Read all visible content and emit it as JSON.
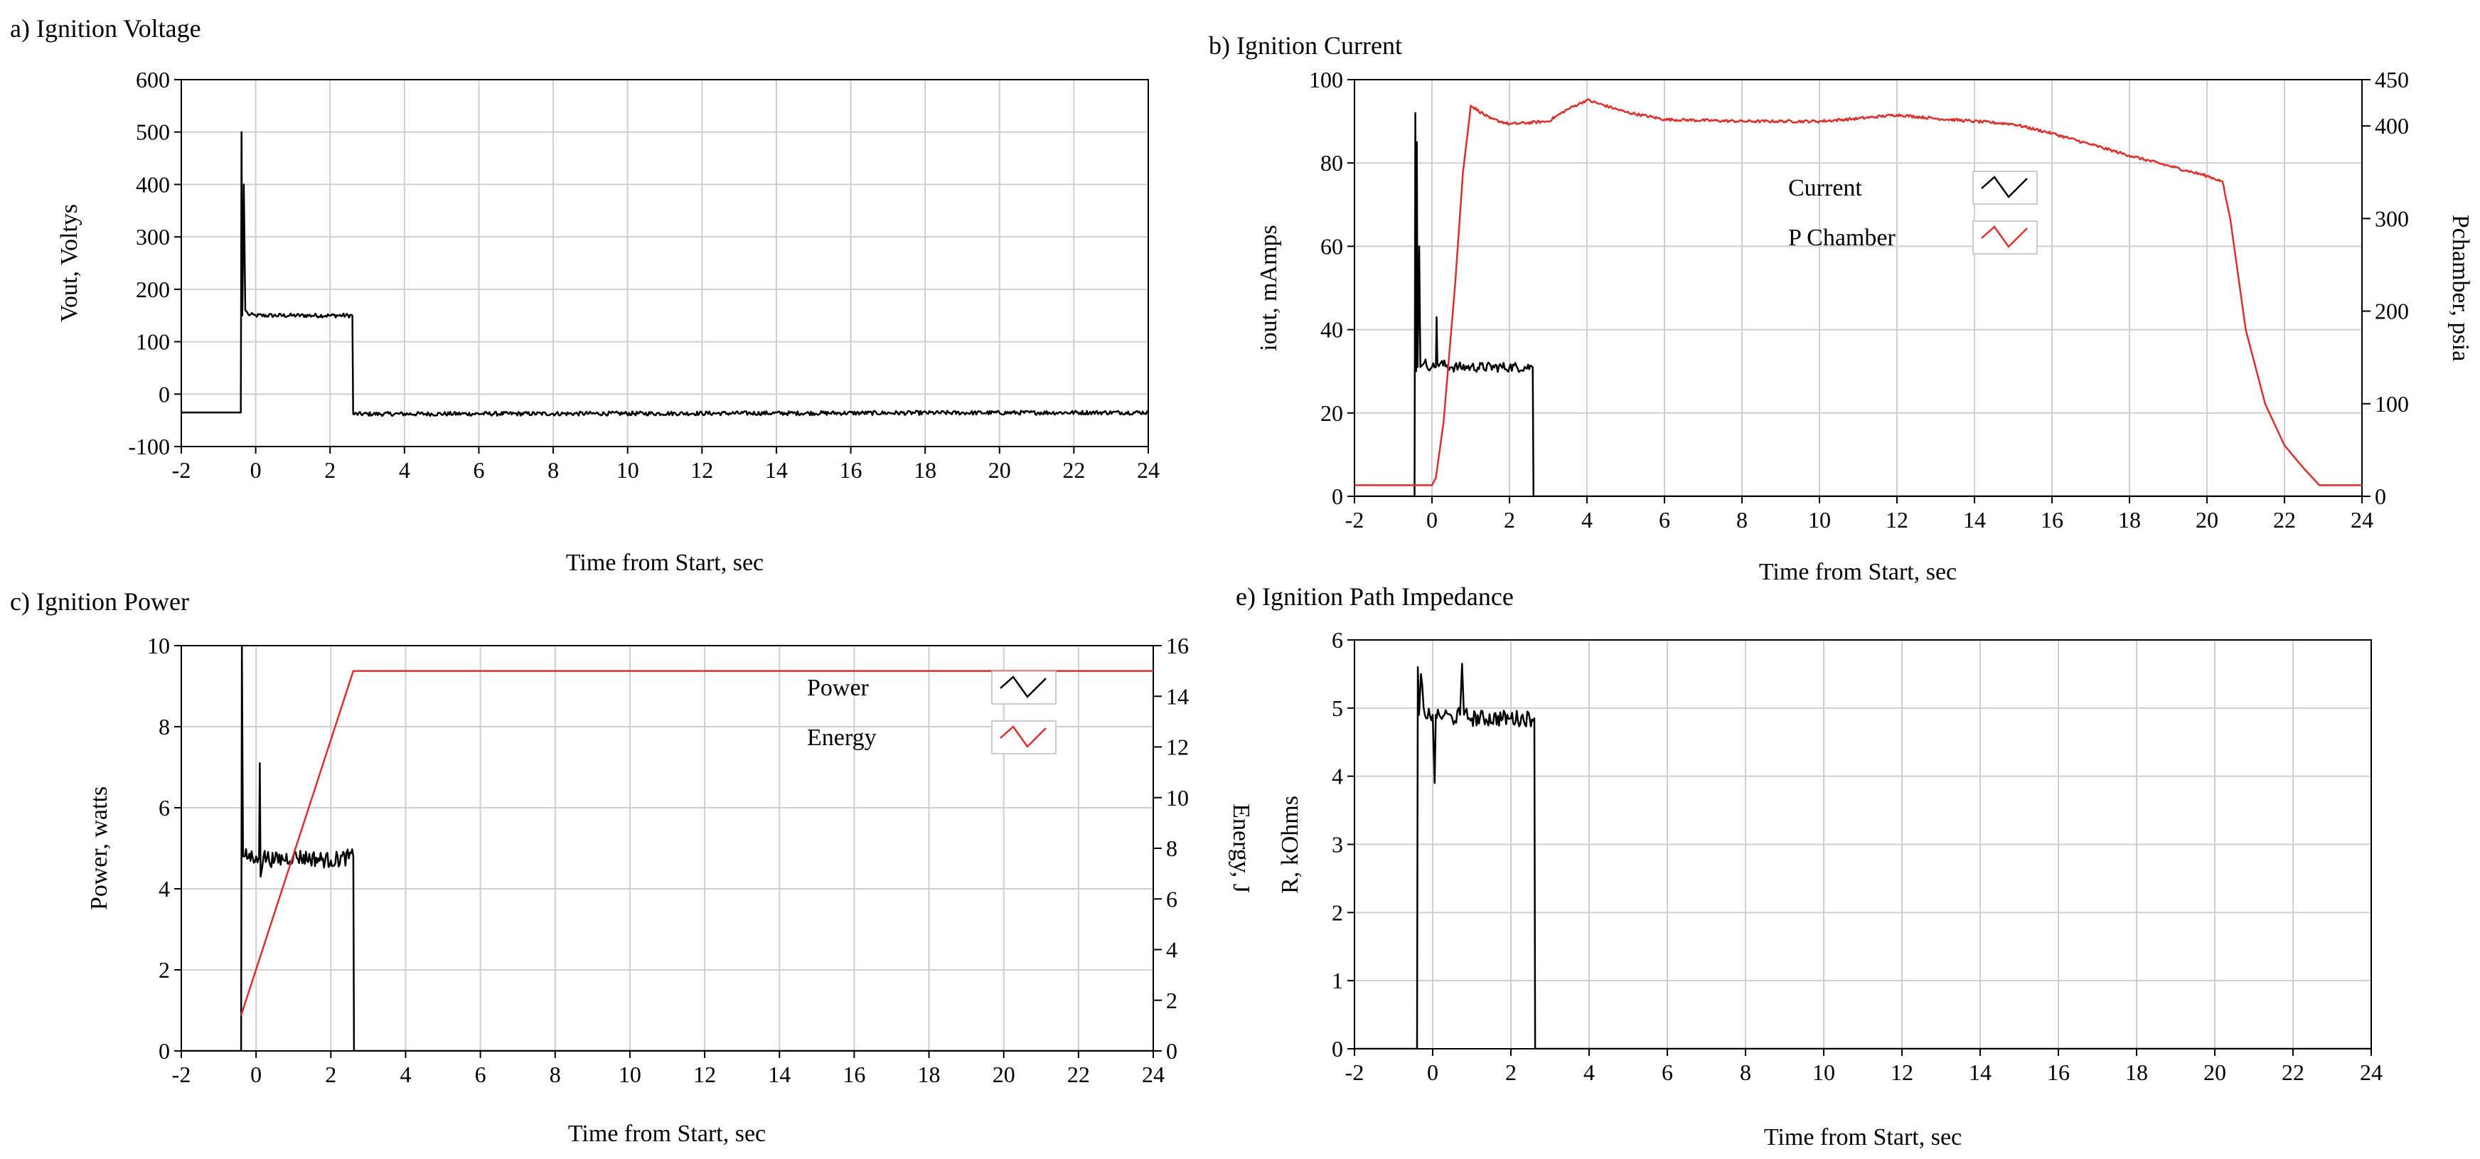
{
  "colors": {
    "series_black": "#000000",
    "series_red": "#d9302c",
    "grid": "#cfcfcf"
  },
  "chart_data": [
    {
      "id": "voltage",
      "type": "line",
      "title": "a) Ignition Voltage",
      "xlabel": "Time from  Start, sec",
      "ylabel": "Vout, Voltys",
      "xlim": [
        -2,
        24
      ],
      "ylim": [
        -100,
        600
      ],
      "xticks": [
        -2,
        0,
        2,
        4,
        6,
        8,
        10,
        12,
        14,
        16,
        18,
        20,
        22,
        24
      ],
      "yticks": [
        -100,
        0,
        100,
        200,
        300,
        400,
        500,
        600
      ],
      "grid": true,
      "series": [
        {
          "color": "#000000",
          "axis": "left",
          "noise": 4,
          "noise_range": [
            -0.35,
            24
          ],
          "x": [
            -2,
            -0.4,
            -0.38,
            -0.36,
            -0.32,
            -0.28,
            -0.2,
            0,
            1,
            2,
            2.6,
            2.62,
            24
          ],
          "y": [
            -35,
            -35,
            500,
            150,
            400,
            160,
            152,
            150,
            150,
            150,
            150,
            -38,
            -35
          ]
        }
      ]
    },
    {
      "id": "current",
      "type": "line",
      "title": "b) Ignition Current",
      "xlabel": "Time from  Start, sec",
      "ylabel": "iout, mAmps",
      "y2label": "Pchamber, psia",
      "xlim": [
        -2,
        24
      ],
      "ylim": [
        0,
        100
      ],
      "y2lim": [
        0,
        450
      ],
      "xticks": [
        -2,
        0,
        2,
        4,
        6,
        8,
        10,
        12,
        14,
        16,
        18,
        20,
        22,
        24
      ],
      "yticks": [
        0,
        20,
        40,
        60,
        80,
        100
      ],
      "y2ticks": [
        0,
        100,
        200,
        300,
        400,
        450
      ],
      "grid": true,
      "legend": {
        "position": "upper-middle",
        "entries": [
          {
            "name": "Current",
            "color": "#000000"
          },
          {
            "name": "P Chamber",
            "color": "#d9302c"
          }
        ]
      },
      "series": [
        {
          "name": "Current",
          "color": "#000000",
          "axis": "left",
          "noise": 1.2,
          "noise_range": [
            -0.2,
            2.6
          ],
          "x": [
            -2,
            -0.45,
            -0.43,
            -0.41,
            -0.39,
            -0.37,
            -0.33,
            -0.3,
            -0.2,
            0,
            0.1,
            0.12,
            0.14,
            0.5,
            1,
            2,
            2.6,
            2.62,
            24
          ],
          "y": [
            0,
            0,
            92,
            30,
            85,
            31,
            60,
            31,
            32,
            31,
            31,
            43,
            32,
            31,
            31,
            31,
            31,
            0,
            0
          ]
        },
        {
          "name": "P Chamber",
          "color": "#d9302c",
          "axis": "right",
          "noise": 1.5,
          "noise_range": [
            0.9,
            20.5
          ],
          "x": [
            -2,
            0,
            0.1,
            0.3,
            0.6,
            0.8,
            1,
            1.5,
            2,
            3,
            3.5,
            4,
            5,
            6,
            8,
            10,
            11,
            12,
            13,
            14,
            15,
            16,
            17,
            18,
            19,
            20,
            20.4,
            20.6,
            21,
            21.5,
            22,
            22.5,
            22.9,
            23,
            24
          ],
          "y": [
            12,
            12,
            20,
            80,
            230,
            350,
            422,
            408,
            402,
            405,
            418,
            428,
            415,
            407,
            405,
            405,
            408,
            412,
            408,
            405,
            402,
            392,
            380,
            368,
            357,
            346,
            340,
            300,
            180,
            100,
            55,
            30,
            12,
            12,
            12
          ]
        }
      ]
    },
    {
      "id": "power",
      "type": "line",
      "title": "c) Ignition Power",
      "xlabel": "Time from  Start, sec",
      "ylabel": "Power, watts",
      "y2label": "Energy, J",
      "xlim": [
        -2,
        24
      ],
      "ylim": [
        0,
        10
      ],
      "y2lim": [
        0,
        16
      ],
      "xticks": [
        -2,
        0,
        2,
        4,
        6,
        8,
        10,
        12,
        14,
        16,
        18,
        20,
        22,
        24
      ],
      "yticks": [
        0,
        2,
        4,
        6,
        8,
        10
      ],
      "y2ticks": [
        0,
        2,
        4,
        6,
        8,
        10,
        12,
        14,
        16
      ],
      "grid": true,
      "legend": {
        "position": "upper-right",
        "entries": [
          {
            "name": "Power",
            "color": "#000000"
          },
          {
            "name": "Energy",
            "color": "#d9302c"
          }
        ]
      },
      "series": [
        {
          "name": "Power",
          "color": "#000000",
          "axis": "left",
          "noise": 0.2,
          "noise_range": [
            -0.3,
            2.6
          ],
          "x": [
            -2,
            -0.4,
            -0.38,
            -0.35,
            -0.3,
            0,
            0.08,
            0.1,
            0.12,
            0.2,
            0.5,
            1,
            2,
            2.6,
            2.62,
            24
          ],
          "y": [
            0,
            0,
            10,
            4.8,
            4.8,
            4.8,
            4.8,
            7.1,
            4.3,
            4.8,
            4.7,
            4.8,
            4.7,
            4.8,
            0,
            0
          ]
        },
        {
          "name": "Energy",
          "color": "#d9302c",
          "axis": "right",
          "noise": 0,
          "noise_range": [
            0,
            0
          ],
          "x": [
            -0.4,
            2.6,
            24
          ],
          "y": [
            1.4,
            15,
            15
          ]
        }
      ]
    },
    {
      "id": "impedance",
      "type": "line",
      "title": "e) Ignition Path Impedance",
      "xlabel": "Time from  Start, sec",
      "ylabel": "R, kOhms",
      "xlim": [
        -2,
        24
      ],
      "ylim": [
        0,
        6
      ],
      "xticks": [
        -2,
        0,
        2,
        4,
        6,
        8,
        10,
        12,
        14,
        16,
        18,
        20,
        22,
        24
      ],
      "yticks": [
        0,
        1,
        2,
        3,
        4,
        5,
        6
      ],
      "grid": true,
      "series": [
        {
          "color": "#000000",
          "axis": "left",
          "noise": 0.12,
          "noise_range": [
            -0.3,
            2.6
          ],
          "x": [
            -2,
            -0.4,
            -0.38,
            -0.35,
            -0.3,
            -0.2,
            0,
            0.05,
            0.08,
            0.1,
            0.3,
            0.5,
            0.7,
            0.75,
            0.8,
            1,
            2,
            2.6,
            2.62,
            24
          ],
          "y": [
            0,
            0,
            5.6,
            4.9,
            5.5,
            4.9,
            4.9,
            3.9,
            4.9,
            4.85,
            4.9,
            4.85,
            4.9,
            5.65,
            4.9,
            4.85,
            4.85,
            4.85,
            0,
            0
          ]
        }
      ]
    }
  ]
}
